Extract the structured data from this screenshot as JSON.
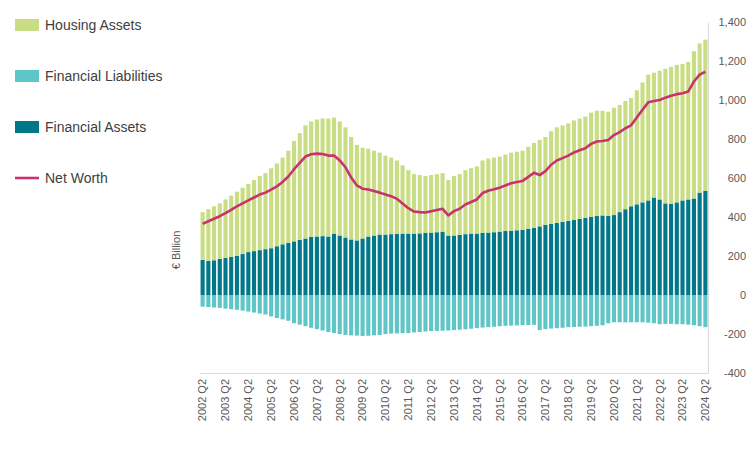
{
  "chart_data": {
    "type": "bar",
    "ylabel": "€ Billion",
    "stacked": true,
    "grid": false,
    "legend": "left",
    "categories": [
      "2002 Q2",
      null,
      null,
      null,
      "2003 Q2",
      null,
      null,
      null,
      "2004 Q2",
      null,
      null,
      null,
      "2005 Q2",
      null,
      null,
      null,
      "2006 Q2",
      null,
      null,
      null,
      "2007 Q2",
      null,
      null,
      null,
      "2008 Q2",
      null,
      null,
      null,
      "2009 Q2",
      null,
      null,
      null,
      "2010 Q2",
      null,
      null,
      null,
      "2011 Q2",
      null,
      null,
      null,
      "2012 Q2",
      null,
      null,
      null,
      "2013 Q2",
      null,
      null,
      null,
      "2014 Q2",
      null,
      null,
      null,
      "2015 Q2",
      null,
      null,
      null,
      "2016 Q2",
      null,
      null,
      null,
      "2017 Q2",
      null,
      null,
      null,
      "2018 Q2",
      null,
      null,
      null,
      "2019 Q2",
      null,
      null,
      null,
      "2020 Q2",
      null,
      null,
      null,
      "2021 Q2",
      null,
      null,
      null,
      "2022 Q2",
      null,
      null,
      null,
      "2023 Q2",
      null,
      null,
      null,
      "2024 Q2"
    ],
    "series": [
      {
        "name": "Housing Assets",
        "type": "bar",
        "color": "#c9de84",
        "values": [
          245,
          265,
          277,
          285,
          300,
          315,
          330,
          340,
          350,
          365,
          380,
          390,
          410,
          425,
          445,
          472,
          515,
          547,
          580,
          592,
          600,
          603,
          605,
          595,
          585,
          565,
          525,
          490,
          465,
          450,
          435,
          420,
          405,
          393,
          376,
          350,
          325,
          305,
          299,
          292,
          295,
          298,
          300,
          285,
          305,
          312,
          328,
          335,
          345,
          372,
          380,
          383,
          385,
          392,
          400,
          403,
          405,
          420,
          435,
          443,
          450,
          475,
          490,
          495,
          500,
          510,
          515,
          520,
          535,
          540,
          537,
          535,
          550,
          550,
          555,
          555,
          585,
          615,
          645,
          640,
          660,
          690,
          702,
          705,
          700,
          705,
          755,
          765,
          775
        ]
      },
      {
        "name": "Financial Liabilities",
        "type": "bar",
        "color": "#5fc6c7",
        "values": [
          -60,
          -62,
          -64,
          -66,
          -70,
          -73,
          -76,
          -80,
          -85,
          -90,
          -95,
          -100,
          -110,
          -118,
          -125,
          -132,
          -145,
          -152,
          -160,
          -168,
          -175,
          -182,
          -190,
          -195,
          -200,
          -205,
          -207,
          -208,
          -210,
          -209,
          -207,
          -205,
          -200,
          -198,
          -197,
          -196,
          -195,
          -192,
          -190,
          -187,
          -185,
          -184,
          -183,
          -182,
          -180,
          -178,
          -176,
          -173,
          -170,
          -167,
          -165,
          -163,
          -160,
          -158,
          -157,
          -156,
          -155,
          -154,
          -153,
          -180,
          -175,
          -172,
          -170,
          -168,
          -165,
          -164,
          -163,
          -162,
          -160,
          -158,
          -155,
          -145,
          -140,
          -140,
          -140,
          -140,
          -140,
          -140,
          -142,
          -145,
          -150,
          -148,
          -148,
          -150,
          -150,
          -152,
          -155,
          -160,
          -165
        ]
      },
      {
        "name": "Financial Assets",
        "type": "bar",
        "color": "#00788a",
        "values": [
          180,
          175,
          178,
          185,
          190,
          195,
          200,
          210,
          220,
          225,
          230,
          235,
          240,
          250,
          260,
          268,
          275,
          283,
          290,
          298,
          300,
          302,
          300,
          315,
          305,
          295,
          285,
          280,
          290,
          300,
          305,
          310,
          310,
          312,
          314,
          315,
          315,
          315,
          316,
          318,
          320,
          322,
          325,
          305,
          305,
          308,
          312,
          315,
          315,
          318,
          320,
          322,
          325,
          328,
          330,
          332,
          335,
          340,
          345,
          352,
          360,
          365,
          370,
          375,
          380,
          385,
          390,
          395,
          400,
          405,
          408,
          405,
          410,
          425,
          440,
          455,
          465,
          475,
          485,
          500,
          490,
          470,
          468,
          475,
          485,
          490,
          495,
          525,
          535
        ]
      },
      {
        "name": "Net Worth",
        "type": "line",
        "color": "#c8336f",
        "values": [
          365,
          378,
          391,
          404,
          420,
          437,
          454,
          470,
          485,
          500,
          515,
          525,
          540,
          557,
          580,
          608,
          645,
          678,
          710,
          722,
          725,
          723,
          715,
          715,
          690,
          655,
          603,
          562,
          545,
          541,
          533,
          525,
          515,
          507,
          493,
          469,
          445,
          428,
          425,
          423,
          430,
          436,
          442,
          408,
          430,
          442,
          464,
          477,
          490,
          523,
          535,
          542,
          550,
          562,
          573,
          579,
          585,
          606,
          627,
          615,
          635,
          668,
          690,
          702,
          715,
          731,
          742,
          753,
          775,
          787,
          790,
          795,
          820,
          835,
          855,
          870,
          910,
          950,
          988,
          995,
          1000,
          1012,
          1022,
          1030,
          1035,
          1043,
          1095,
          1130,
          1145
        ]
      }
    ],
    "ylim": [
      -400,
      1400
    ],
    "yticks": [
      -400,
      -200,
      0,
      200,
      400,
      600,
      800,
      {
        "value": 1000,
        "label": "1,000"
      },
      {
        "value": 1200,
        "label": "1,200"
      },
      {
        "value": 1400,
        "label": "1,400"
      }
    ]
  }
}
